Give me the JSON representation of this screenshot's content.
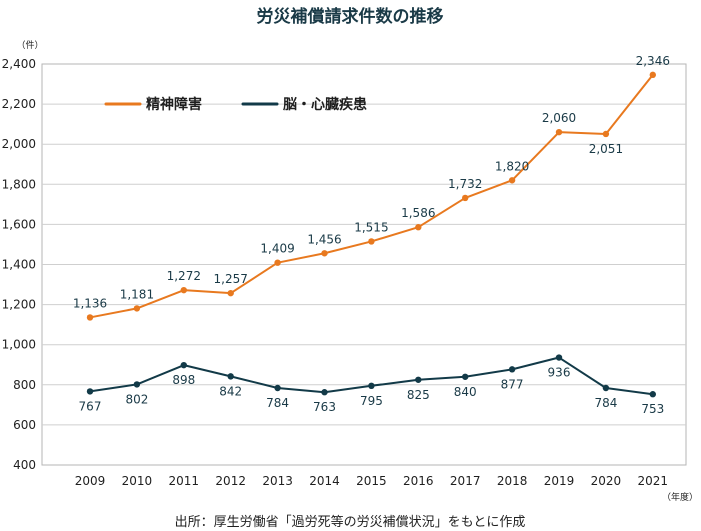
{
  "chart_data": {
    "type": "line",
    "title": "労災補償請求件数の推移",
    "ylabel": "（件）",
    "xlabel": "（年度）",
    "categories": [
      "2009",
      "2010",
      "2011",
      "2012",
      "2013",
      "2014",
      "2015",
      "2016",
      "2017",
      "2018",
      "2019",
      "2020",
      "2021"
    ],
    "ylim": [
      400,
      2400
    ],
    "yticks": [
      400,
      600,
      800,
      1000,
      1200,
      1400,
      1600,
      1800,
      2000,
      2200,
      2400
    ],
    "ytick_labels": [
      "400",
      "600",
      "800",
      "1,000",
      "1,200",
      "1,400",
      "1,600",
      "1,800",
      "2,000",
      "2,200",
      "2,400"
    ],
    "grid": true,
    "legend_position": "top-left",
    "series": [
      {
        "name": "精神障害",
        "color": "#e8791f",
        "values": [
          1136,
          1181,
          1272,
          1257,
          1409,
          1456,
          1515,
          1586,
          1732,
          1820,
          2060,
          2051,
          2346
        ],
        "labels": [
          "1,136",
          "1,181",
          "1,272",
          "1,257",
          "1,409",
          "1,456",
          "1,515",
          "1,586",
          "1,732",
          "1,820",
          "2,060",
          "2,051",
          "2,346"
        ]
      },
      {
        "name": "脳・心臓疾患",
        "color": "#123a48",
        "values": [
          767,
          802,
          898,
          842,
          784,
          763,
          795,
          825,
          840,
          877,
          936,
          784,
          753
        ],
        "labels": [
          "767",
          "802",
          "898",
          "842",
          "784",
          "763",
          "795",
          "825",
          "840",
          "877",
          "936",
          "784",
          "753"
        ]
      }
    ],
    "source": "出所：厚生労働省「過労死等の労災補償状況」をもとに作成"
  }
}
